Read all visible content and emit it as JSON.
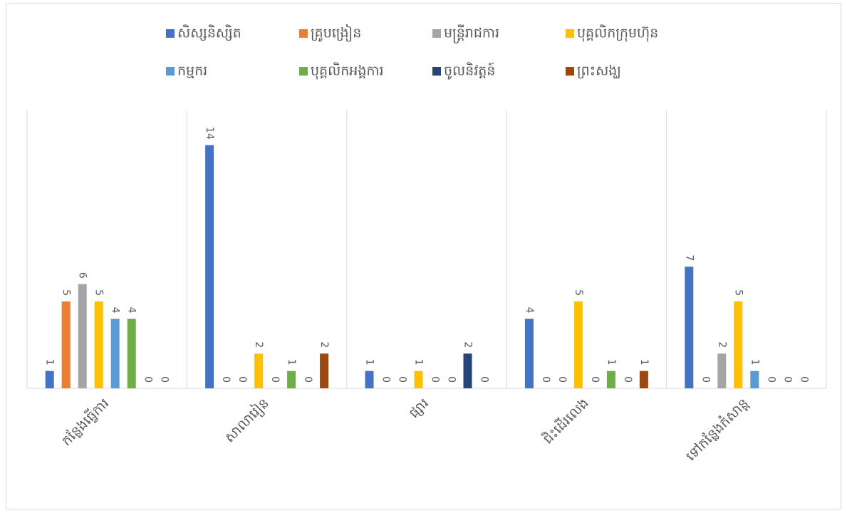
{
  "chart_data": {
    "type": "bar",
    "categories": [
      "កន្លែងធ្វើការ",
      "សាលារៀន",
      "ផ្សារ",
      "ជិះដើរលេង",
      "ទៅកន្លែងកំសាន្ត"
    ],
    "series": [
      {
        "name": "សិស្សនិស្សិត",
        "color": "#4472c4",
        "values": [
          1,
          14,
          1,
          4,
          7
        ]
      },
      {
        "name": "គ្រូបង្រៀន",
        "color": "#ed7d31",
        "values": [
          5,
          0,
          0,
          0,
          0
        ]
      },
      {
        "name": "មន្ត្រីរាជការ",
        "color": "#a5a5a5",
        "values": [
          6,
          0,
          0,
          0,
          2
        ]
      },
      {
        "name": "បុគ្គលិកក្រុមហ៊ុន",
        "color": "#ffc000",
        "values": [
          5,
          2,
          1,
          5,
          5
        ]
      },
      {
        "name": "កម្មករ",
        "color": "#5b9bd5",
        "values": [
          4,
          0,
          0,
          0,
          1
        ]
      },
      {
        "name": "បុគ្គលិកអង្គការ",
        "color": "#70ad47",
        "values": [
          4,
          1,
          0,
          1,
          0
        ]
      },
      {
        "name": "ចូលនិវត្តន៍",
        "color": "#264478",
        "values": [
          0,
          0,
          2,
          0,
          0
        ]
      },
      {
        "name": "ព្រះសង្ឃ",
        "color": "#9e480e",
        "values": [
          0,
          2,
          0,
          1,
          0
        ]
      }
    ],
    "ylim": [
      0,
      16
    ],
    "legend": "top"
  }
}
